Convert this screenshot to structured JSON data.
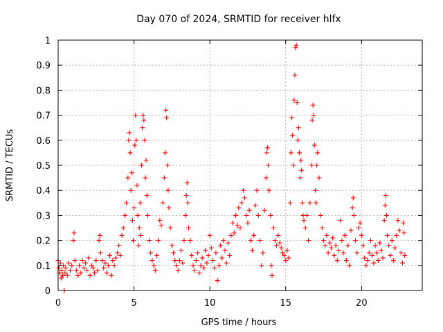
{
  "chart_data": {
    "type": "scatter",
    "title": "Day 070 of 2024, SRMTID for receiver hlfx",
    "xlabel": "GPS time / hours",
    "ylabel": "SRMTID / TECUs",
    "xlim": [
      0,
      24
    ],
    "ylim": [
      0,
      1
    ],
    "x_ticks": [
      "0",
      "5",
      "10",
      "15",
      "20"
    ],
    "y_ticks": [
      "0",
      "0.1",
      "0.2",
      "0.3",
      "0.4",
      "0.5",
      "0.6",
      "0.7",
      "0.8",
      "0.9",
      "1"
    ],
    "grid": true,
    "marker": "+",
    "color": "#ff0000",
    "series": [
      {
        "name": "SRMTID",
        "points": [
          [
            0.0,
            0.12
          ],
          [
            0.05,
            0.09
          ],
          [
            0.1,
            0.07
          ],
          [
            0.15,
            0.11
          ],
          [
            0.2,
            0.05
          ],
          [
            0.25,
            0.08
          ],
          [
            0.3,
            0.06
          ],
          [
            0.35,
            0.1
          ],
          [
            0.4,
            0.0
          ],
          [
            0.45,
            0.07
          ],
          [
            0.5,
            0.09
          ],
          [
            0.6,
            0.06
          ],
          [
            0.7,
            0.11
          ],
          [
            0.8,
            0.08
          ],
          [
            0.9,
            0.1
          ],
          [
            1.0,
            0.2
          ],
          [
            1.05,
            0.23
          ],
          [
            1.1,
            0.12
          ],
          [
            1.2,
            0.08
          ],
          [
            1.3,
            0.06
          ],
          [
            1.4,
            0.1
          ],
          [
            1.5,
            0.07
          ],
          [
            1.6,
            0.12
          ],
          [
            1.7,
            0.09
          ],
          [
            1.8,
            0.11
          ],
          [
            1.9,
            0.08
          ],
          [
            2.0,
            0.13
          ],
          [
            2.1,
            0.06
          ],
          [
            2.2,
            0.1
          ],
          [
            2.3,
            0.09
          ],
          [
            2.4,
            0.07
          ],
          [
            2.5,
            0.12
          ],
          [
            2.6,
            0.08
          ],
          [
            2.7,
            0.2
          ],
          [
            2.75,
            0.22
          ],
          [
            2.8,
            0.15
          ],
          [
            2.9,
            0.12
          ],
          [
            3.0,
            0.09
          ],
          [
            3.1,
            0.11
          ],
          [
            3.2,
            0.07
          ],
          [
            3.3,
            0.1
          ],
          [
            3.4,
            0.14
          ],
          [
            3.5,
            0.06
          ],
          [
            3.6,
            0.12
          ],
          [
            3.7,
            0.1
          ],
          [
            3.8,
            0.13
          ],
          [
            3.9,
            0.15
          ],
          [
            4.0,
            0.18
          ],
          [
            4.1,
            0.14
          ],
          [
            4.2,
            0.22
          ],
          [
            4.3,
            0.25
          ],
          [
            4.4,
            0.3
          ],
          [
            4.5,
            0.35
          ],
          [
            4.6,
            0.45
          ],
          [
            4.65,
            0.6
          ],
          [
            4.7,
            0.63
          ],
          [
            4.75,
            0.55
          ],
          [
            4.8,
            0.4
          ],
          [
            4.85,
            0.47
          ],
          [
            4.9,
            0.28
          ],
          [
            4.95,
            0.2
          ],
          [
            5.0,
            0.33
          ],
          [
            5.05,
            0.58
          ],
          [
            5.1,
            0.7
          ],
          [
            5.15,
            0.6
          ],
          [
            5.2,
            0.42
          ],
          [
            5.25,
            0.3
          ],
          [
            5.3,
            0.18
          ],
          [
            5.35,
            0.25
          ],
          [
            5.4,
            0.35
          ],
          [
            5.45,
            0.22
          ],
          [
            5.5,
            0.5
          ],
          [
            5.55,
            0.65
          ],
          [
            5.6,
            0.7
          ],
          [
            5.65,
            0.68
          ],
          [
            5.7,
            0.6
          ],
          [
            5.75,
            0.45
          ],
          [
            5.8,
            0.52
          ],
          [
            5.85,
            0.38
          ],
          [
            5.9,
            0.3
          ],
          [
            6.0,
            0.2
          ],
          [
            6.1,
            0.15
          ],
          [
            6.2,
            0.12
          ],
          [
            6.3,
            0.1
          ],
          [
            6.4,
            0.08
          ],
          [
            6.5,
            0.14
          ],
          [
            6.6,
            0.2
          ],
          [
            6.7,
            0.28
          ],
          [
            6.8,
            0.26
          ],
          [
            6.9,
            0.35
          ],
          [
            7.0,
            0.45
          ],
          [
            7.05,
            0.55
          ],
          [
            7.1,
            0.72
          ],
          [
            7.15,
            0.69
          ],
          [
            7.2,
            0.5
          ],
          [
            7.25,
            0.4
          ],
          [
            7.3,
            0.33
          ],
          [
            7.4,
            0.25
          ],
          [
            7.5,
            0.18
          ],
          [
            7.6,
            0.15
          ],
          [
            7.7,
            0.12
          ],
          [
            7.8,
            0.1
          ],
          [
            7.9,
            0.08
          ],
          [
            8.0,
            0.12
          ],
          [
            8.1,
            0.16
          ],
          [
            8.2,
            0.11
          ],
          [
            8.3,
            0.2
          ],
          [
            8.4,
            0.3
          ],
          [
            8.45,
            0.38
          ],
          [
            8.5,
            0.43
          ],
          [
            8.55,
            0.35
          ],
          [
            8.6,
            0.25
          ],
          [
            8.7,
            0.2
          ],
          [
            8.8,
            0.14
          ],
          [
            8.9,
            0.1
          ],
          [
            9.0,
            0.08
          ],
          [
            9.1,
            0.12
          ],
          [
            9.2,
            0.15
          ],
          [
            9.3,
            0.07
          ],
          [
            9.4,
            0.1
          ],
          [
            9.5,
            0.13
          ],
          [
            9.6,
            0.09
          ],
          [
            9.7,
            0.16
          ],
          [
            9.8,
            0.11
          ],
          [
            9.9,
            0.14
          ],
          [
            10.0,
            0.22
          ],
          [
            10.1,
            0.17
          ],
          [
            10.2,
            0.12
          ],
          [
            10.3,
            0.09
          ],
          [
            10.4,
            0.15
          ],
          [
            10.5,
            0.04
          ],
          [
            10.6,
            0.1
          ],
          [
            10.7,
            0.18
          ],
          [
            10.8,
            0.13
          ],
          [
            10.9,
            0.2
          ],
          [
            11.0,
            0.16
          ],
          [
            11.1,
            0.11
          ],
          [
            11.2,
            0.19
          ],
          [
            11.3,
            0.14
          ],
          [
            11.4,
            0.22
          ],
          [
            11.5,
            0.27
          ],
          [
            11.6,
            0.23
          ],
          [
            11.7,
            0.3
          ],
          [
            11.8,
            0.26
          ],
          [
            11.9,
            0.33
          ],
          [
            12.0,
            0.25
          ],
          [
            12.1,
            0.35
          ],
          [
            12.2,
            0.4
          ],
          [
            12.3,
            0.37
          ],
          [
            12.4,
            0.3
          ],
          [
            12.5,
            0.27
          ],
          [
            12.6,
            0.32
          ],
          [
            12.7,
            0.2
          ],
          [
            12.8,
            0.16
          ],
          [
            12.9,
            0.22
          ],
          [
            13.0,
            0.34
          ],
          [
            13.1,
            0.4
          ],
          [
            13.2,
            0.3
          ],
          [
            13.3,
            0.2
          ],
          [
            13.4,
            0.1
          ],
          [
            13.5,
            0.15
          ],
          [
            13.6,
            0.32
          ],
          [
            13.7,
            0.45
          ],
          [
            13.75,
            0.55
          ],
          [
            13.8,
            0.57
          ],
          [
            13.85,
            0.5
          ],
          [
            13.9,
            0.4
          ],
          [
            14.0,
            0.3
          ],
          [
            14.05,
            0.1
          ],
          [
            14.1,
            0.06
          ],
          [
            14.2,
            0.25
          ],
          [
            14.3,
            0.2
          ],
          [
            14.4,
            0.18
          ],
          [
            14.5,
            0.22
          ],
          [
            14.6,
            0.19
          ],
          [
            14.7,
            0.17
          ],
          [
            14.8,
            0.15
          ],
          [
            14.9,
            0.14
          ],
          [
            15.0,
            0.12
          ],
          [
            15.1,
            0.16
          ],
          [
            15.2,
            0.13
          ],
          [
            15.3,
            0.35
          ],
          [
            15.35,
            0.55
          ],
          [
            15.4,
            0.69
          ],
          [
            15.45,
            0.62
          ],
          [
            15.5,
            0.5
          ],
          [
            15.55,
            0.76
          ],
          [
            15.6,
            0.86
          ],
          [
            15.65,
            0.97
          ],
          [
            15.7,
            0.98
          ],
          [
            15.75,
            0.75
          ],
          [
            15.8,
            0.6
          ],
          [
            15.85,
            0.65
          ],
          [
            15.9,
            0.55
          ],
          [
            15.95,
            0.45
          ],
          [
            16.0,
            0.52
          ],
          [
            16.05,
            0.48
          ],
          [
            16.1,
            0.35
          ],
          [
            16.15,
            0.3
          ],
          [
            16.2,
            0.28
          ],
          [
            16.3,
            0.25
          ],
          [
            16.4,
            0.3
          ],
          [
            16.5,
            0.2
          ],
          [
            16.6,
            0.35
          ],
          [
            16.7,
            0.5
          ],
          [
            16.75,
            0.68
          ],
          [
            16.8,
            0.74
          ],
          [
            16.85,
            0.7
          ],
          [
            16.9,
            0.58
          ],
          [
            16.95,
            0.4
          ],
          [
            17.0,
            0.35
          ],
          [
            17.05,
            0.5
          ],
          [
            17.1,
            0.55
          ],
          [
            17.2,
            0.45
          ],
          [
            17.3,
            0.3
          ],
          [
            17.4,
            0.25
          ],
          [
            17.5,
            0.2
          ],
          [
            17.6,
            0.18
          ],
          [
            17.7,
            0.22
          ],
          [
            17.8,
            0.15
          ],
          [
            17.9,
            0.19
          ],
          [
            18.0,
            0.17
          ],
          [
            18.1,
            0.21
          ],
          [
            18.2,
            0.14
          ],
          [
            18.3,
            0.18
          ],
          [
            18.4,
            0.12
          ],
          [
            18.5,
            0.16
          ],
          [
            18.6,
            0.28
          ],
          [
            18.7,
            0.2
          ],
          [
            18.8,
            0.15
          ],
          [
            18.9,
            0.22
          ],
          [
            19.0,
            0.12
          ],
          [
            19.1,
            0.18
          ],
          [
            19.2,
            0.1
          ],
          [
            19.3,
            0.24
          ],
          [
            19.4,
            0.33
          ],
          [
            19.45,
            0.37
          ],
          [
            19.5,
            0.3
          ],
          [
            19.6,
            0.2
          ],
          [
            19.7,
            0.15
          ],
          [
            19.8,
            0.25
          ],
          [
            19.9,
            0.27
          ],
          [
            20.0,
            0.22
          ],
          [
            20.1,
            0.18
          ],
          [
            20.2,
            0.13
          ],
          [
            20.3,
            0.1
          ],
          [
            20.4,
            0.12
          ],
          [
            20.5,
            0.15
          ],
          [
            20.6,
            0.2
          ],
          [
            20.7,
            0.14
          ],
          [
            20.8,
            0.11
          ],
          [
            20.9,
            0.18
          ],
          [
            21.0,
            0.15
          ],
          [
            21.1,
            0.12
          ],
          [
            21.2,
            0.19
          ],
          [
            21.3,
            0.16
          ],
          [
            21.4,
            0.13
          ],
          [
            21.5,
            0.28
          ],
          [
            21.55,
            0.34
          ],
          [
            21.6,
            0.38
          ],
          [
            21.65,
            0.3
          ],
          [
            21.7,
            0.22
          ],
          [
            21.8,
            0.18
          ],
          [
            21.9,
            0.14
          ],
          [
            22.0,
            0.2
          ],
          [
            22.1,
            0.12
          ],
          [
            22.2,
            0.17
          ],
          [
            22.3,
            0.22
          ],
          [
            22.4,
            0.28
          ],
          [
            22.5,
            0.24
          ],
          [
            22.6,
            0.15
          ],
          [
            22.7,
            0.11
          ],
          [
            22.75,
            0.27
          ],
          [
            22.8,
            0.23
          ],
          [
            22.85,
            0.14
          ]
        ]
      }
    ]
  }
}
